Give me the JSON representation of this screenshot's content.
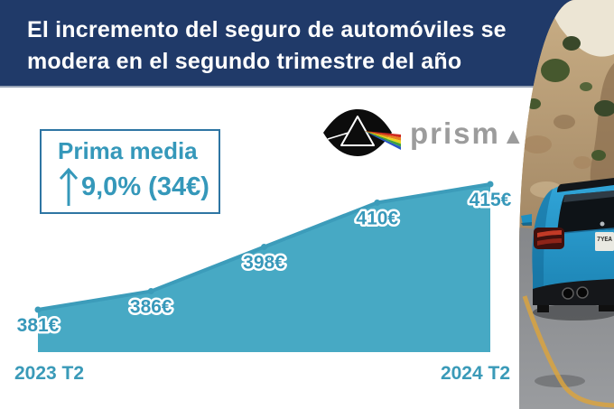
{
  "header": {
    "title_line1": "El incremento del seguro de automóviles se",
    "title_line2": "modera en el segundo trimestre del año",
    "bg_color": "#203a69",
    "text_color": "#ffffff"
  },
  "brand": {
    "wordmark_prefix": "prism",
    "wordmark_final_glyph": "▲",
    "color": "#9c9c9c",
    "icon": "prism-eye-rainbow-icon"
  },
  "stat_box": {
    "label": "Prima media",
    "arrow_icon": "up-arrow",
    "value": "9,0% (34€)",
    "border_color": "#2e75a3",
    "text_color": "#3598ba"
  },
  "chart_data": {
    "type": "area",
    "title": "",
    "xlabel": "",
    "ylabel": "",
    "values": [
      381,
      386,
      398,
      410,
      415
    ],
    "value_labels": [
      "381€",
      "386€",
      "398€",
      "410€",
      "415€"
    ],
    "x_axis_labels": [
      "2023 T2",
      "2024 T2"
    ],
    "unit": "€",
    "ylim": [
      375,
      420
    ],
    "grid": false,
    "legend": false,
    "area_color": "#47a9c4",
    "line_color": "#3c9cba",
    "label_color": "#3798ba"
  },
  "photo": {
    "description": "Rear view of a blue coupe on a mountain road with rocky hillside",
    "license_plate": "7YEA"
  }
}
